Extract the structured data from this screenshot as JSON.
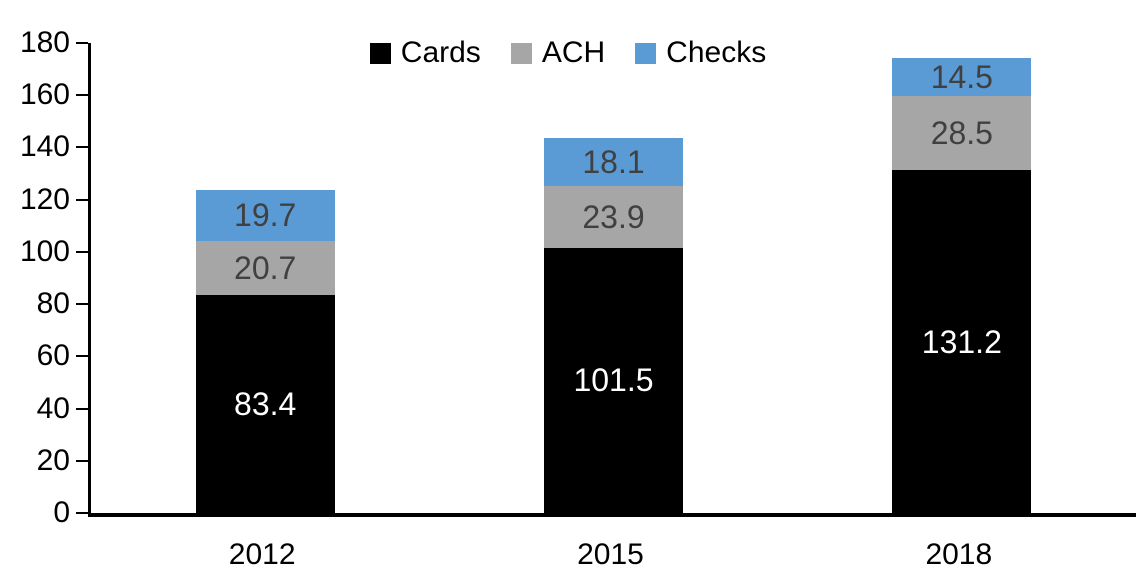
{
  "chart_data": {
    "type": "bar",
    "stacked": true,
    "title": "",
    "categories": [
      "2012",
      "2015",
      "2018"
    ],
    "series": [
      {
        "name": "Cards",
        "values": [
          83.4,
          101.5,
          131.2
        ],
        "color": "#000000",
        "label_color": "#FFFFFF"
      },
      {
        "name": "ACH",
        "values": [
          20.7,
          23.9,
          28.5
        ],
        "color": "#A6A6A6",
        "label_color": "#404040"
      },
      {
        "name": "Checks",
        "values": [
          19.7,
          18.1,
          14.5
        ],
        "color": "#5B9BD5",
        "label_color": "#404040"
      }
    ],
    "ylim": [
      0,
      180
    ],
    "ytick_step": 20,
    "ytick_labels": [
      "0",
      "20",
      "40",
      "60",
      "80",
      "100",
      "120",
      "140",
      "160",
      "180"
    ],
    "xlabel": "",
    "ylabel": "",
    "legend_position": "top-center",
    "grid": false,
    "axis_color": "#000000",
    "background": "#FFFFFF",
    "value_decimals": 1
  }
}
